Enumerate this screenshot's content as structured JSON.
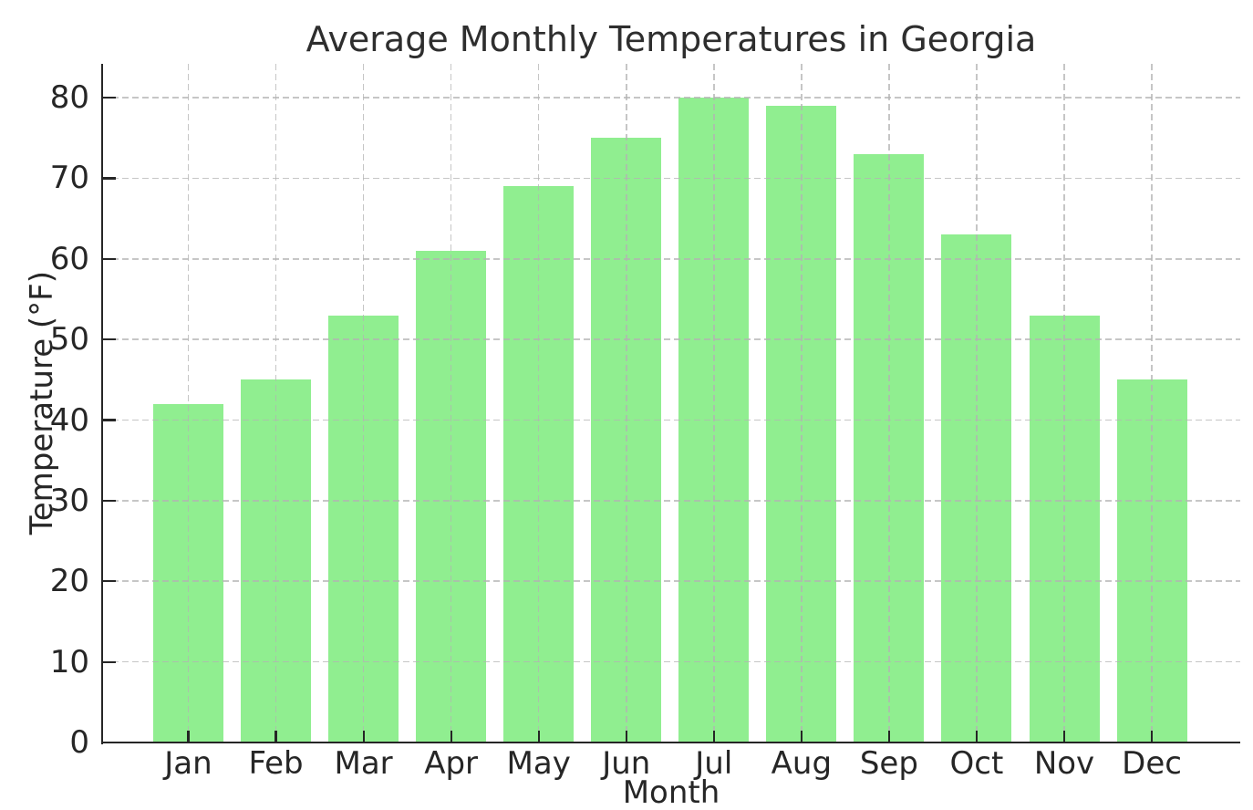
{
  "chart_data": {
    "type": "bar",
    "title": "Average Monthly Temperatures in Georgia",
    "xlabel": "Month",
    "ylabel": "Temperature (°F)",
    "categories": [
      "Jan",
      "Feb",
      "Mar",
      "Apr",
      "May",
      "Jun",
      "Jul",
      "Aug",
      "Sep",
      "Oct",
      "Nov",
      "Dec"
    ],
    "values": [
      42,
      45,
      53,
      61,
      69,
      75,
      80,
      79,
      73,
      63,
      53,
      45
    ],
    "yticks": [
      0,
      10,
      20,
      30,
      40,
      50,
      60,
      70,
      80
    ],
    "ylim": [
      0,
      84.2
    ],
    "grid": "dashed, horizontal and vertical, drawn over bars",
    "legend": "none",
    "colors": {
      "bar": "#90EE90",
      "grid": "#b3b3b3",
      "axis": "#262626",
      "title_text": "#2e2e2e",
      "background": "#ffffff"
    }
  }
}
